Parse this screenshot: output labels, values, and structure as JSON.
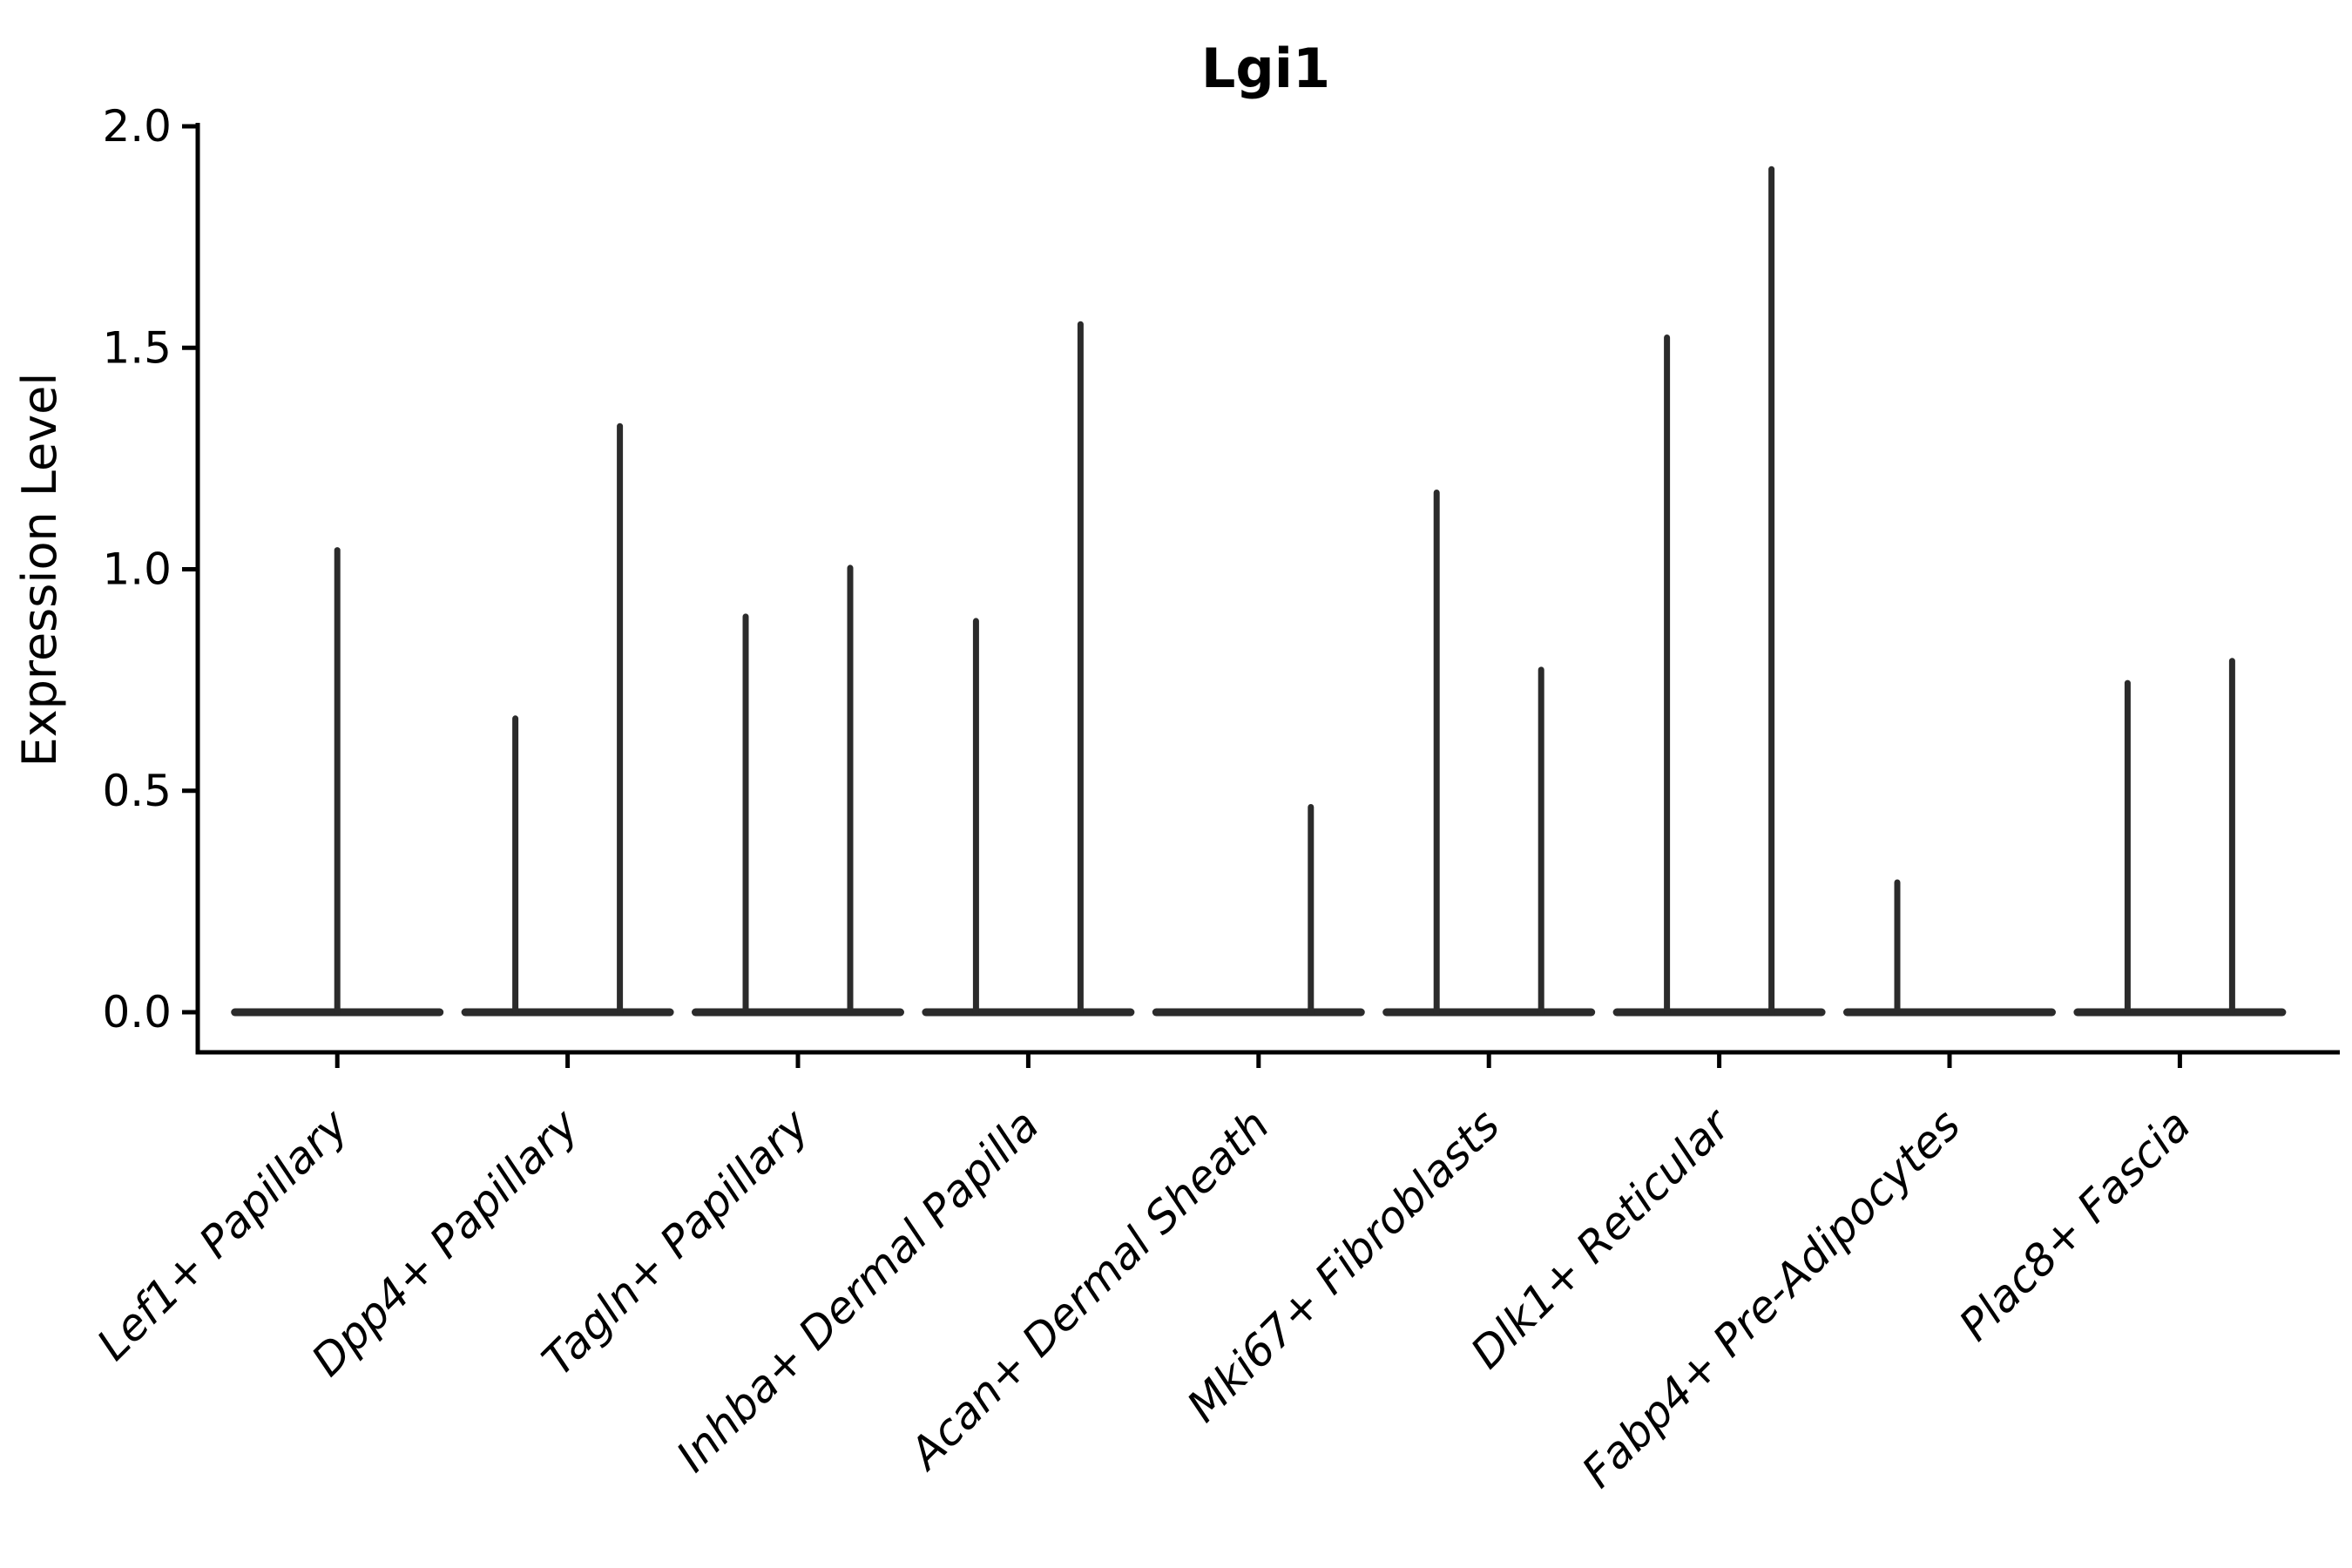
{
  "chart_data": {
    "type": "violin",
    "title": "Lgi1",
    "ylabel": "Expression Level",
    "xlabel": "",
    "ylim": [
      0.0,
      2.0
    ],
    "ytick_labels": [
      "0.0",
      "0.5",
      "1.0",
      "1.5",
      "2.0"
    ],
    "grid": false,
    "legend_position": "none",
    "categories": [
      "Lef1+ Papillary",
      "Dpp4+ Papillary",
      "Tagln+ Papillary",
      "Inhba+ Dermal Papilla",
      "Acan+ Dermal Sheath",
      "Mki67+ Fibroblasts",
      "Dlk1+ Reticular",
      "Fabp4+ Pre-Adipocytes",
      "Plac8+ Fascia"
    ],
    "violins": [
      {
        "category": "Lef1+ Papillary",
        "spikes": [
          {
            "position": "center",
            "value": 1.05
          }
        ]
      },
      {
        "category": "Dpp4+ Papillary",
        "spikes": [
          {
            "position": "left",
            "value": 0.67
          },
          {
            "position": "right",
            "value": 1.33
          }
        ]
      },
      {
        "category": "Tagln+ Papillary",
        "spikes": [
          {
            "position": "left",
            "value": 0.9
          },
          {
            "position": "right",
            "value": 1.01
          }
        ]
      },
      {
        "category": "Inhba+ Dermal Papilla",
        "spikes": [
          {
            "position": "left",
            "value": 0.89
          },
          {
            "position": "right",
            "value": 1.56
          }
        ]
      },
      {
        "category": "Acan+ Dermal Sheath",
        "spikes": [
          {
            "position": "right",
            "value": 0.47
          }
        ]
      },
      {
        "category": "Mki67+ Fibroblasts",
        "spikes": [
          {
            "position": "left",
            "value": 1.18
          },
          {
            "position": "right",
            "value": 0.78
          }
        ]
      },
      {
        "category": "Dlk1+ Reticular",
        "spikes": [
          {
            "position": "left",
            "value": 1.53
          },
          {
            "position": "right",
            "value": 1.91
          }
        ]
      },
      {
        "category": "Fabp4+ Pre-Adipocytes",
        "spikes": [
          {
            "position": "left",
            "value": 0.3
          }
        ]
      },
      {
        "category": "Plac8+ Fascia",
        "spikes": [
          {
            "position": "left",
            "value": 0.75
          },
          {
            "position": "right",
            "value": 0.8
          }
        ]
      }
    ],
    "style": {
      "violin_color": "#2b2b2b",
      "axis_color": "#000000",
      "text_color": "#000000",
      "background": "#ffffff",
      "x_label_rotation_deg": 45,
      "x_label_style": "italic",
      "title_weight": "bold"
    }
  }
}
